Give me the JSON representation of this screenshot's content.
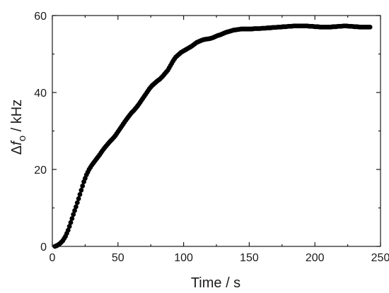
{
  "chart_data": {
    "type": "scatter",
    "xlabel": "Time / s",
    "ylabel": {
      "prefix": "Δ",
      "symbol": "f",
      "subscript": "o",
      "unit": " / kHz"
    },
    "xlim": [
      0,
      250
    ],
    "ylim": [
      0,
      60
    ],
    "x_ticks": [
      0,
      50,
      100,
      150,
      200,
      250
    ],
    "y_ticks": [
      0,
      20,
      40,
      60
    ],
    "x_tick_labels": [
      "0",
      "50",
      "100",
      "150",
      "200",
      "250"
    ],
    "y_tick_labels": [
      "0",
      "20",
      "40",
      "60"
    ],
    "grid": false,
    "marker_color": "#000000",
    "series": [
      {
        "x": [
          2,
          4,
          6,
          8,
          10,
          12,
          14,
          16,
          18,
          20,
          22,
          24,
          26,
          28,
          30,
          32,
          34,
          36,
          38,
          40,
          42,
          44,
          46,
          48,
          50,
          52,
          54,
          56,
          58,
          60,
          62,
          64,
          66,
          68,
          70,
          72,
          74,
          76,
          78,
          80,
          82,
          84,
          86,
          88,
          90,
          92,
          94,
          96,
          98,
          100,
          102,
          104,
          106,
          108,
          110,
          112,
          114,
          116,
          118,
          120,
          122,
          124,
          126,
          128,
          130,
          132,
          134,
          136,
          138,
          140,
          142,
          144,
          146,
          148,
          150,
          152,
          154,
          156,
          158,
          160,
          162,
          164,
          166,
          168,
          170,
          172,
          174,
          176,
          178,
          180,
          182,
          184,
          186,
          188,
          190,
          192,
          194,
          196,
          198,
          200,
          202,
          204,
          206,
          208,
          210,
          212,
          214,
          216,
          218,
          220,
          222,
          224,
          226,
          228,
          230,
          232,
          234,
          236,
          238,
          240,
          242
        ],
        "y": [
          0.0,
          0.3,
          0.8,
          1.5,
          2.6,
          4.2,
          6.2,
          8.3,
          10.3,
          12.4,
          14.6,
          16.8,
          18.6,
          20.0,
          21.1,
          22.0,
          22.9,
          23.8,
          24.8,
          25.7,
          26.5,
          27.3,
          28.0,
          28.8,
          29.8,
          30.8,
          31.8,
          32.8,
          33.7,
          34.6,
          35.3,
          36.1,
          37.0,
          38.0,
          39.0,
          40.0,
          41.0,
          41.8,
          42.4,
          43.0,
          43.5,
          44.2,
          45.0,
          45.8,
          47.0,
          48.2,
          49.2,
          49.8,
          50.4,
          50.8,
          51.2,
          51.6,
          52.0,
          52.5,
          53.0,
          53.3,
          53.6,
          53.8,
          53.9,
          54.0,
          54.2,
          54.5,
          54.8,
          55.0,
          55.3,
          55.6,
          55.8,
          56.0,
          56.2,
          56.3,
          56.4,
          56.5,
          56.5,
          56.5,
          56.5,
          56.5,
          56.6,
          56.6,
          56.6,
          56.7,
          56.7,
          56.8,
          56.8,
          56.9,
          56.9,
          57.0,
          57.0,
          57.1,
          57.1,
          57.2,
          57.2,
          57.3,
          57.3,
          57.3,
          57.3,
          57.3,
          57.3,
          57.2,
          57.2,
          57.1,
          57.1,
          57.0,
          57.0,
          57.0,
          57.0,
          57.0,
          57.1,
          57.1,
          57.2,
          57.2,
          57.3,
          57.3,
          57.2,
          57.2,
          57.1,
          57.1,
          57.0,
          57.0,
          57.0,
          57.0,
          57.0
        ]
      }
    ]
  }
}
